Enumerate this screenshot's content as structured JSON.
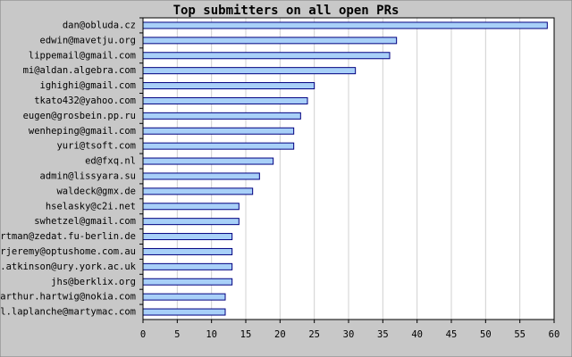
{
  "chart_data": {
    "type": "barh",
    "title": "Top submitters on all open PRs",
    "categories": [
      "dan@obluda.cz",
      "edwin@mavetju.org",
      "lippemail@gmail.com",
      "mi@aldan.algebra.com",
      "ighighi@gmail.com",
      "tkato432@yahoo.com",
      "eugen@grosbein.pp.ru",
      "wenheping@gmail.com",
      "yuri@tsoft.com",
      "ed@fxq.nl",
      "admin@lissyara.su",
      "waldeck@gmx.de",
      "hselasky@c2i.net",
      "swhetzel@gmail.com",
      "artman@zedat.fu-berlin.de",
      "erjeremy@optushome.com.au",
      "n.atkinson@ury.york.ac.uk",
      "jhs@berklix.org",
      "arthur.hartwig@nokia.com",
      "el.laplanche@martymac.com"
    ],
    "values": [
      59,
      37,
      36,
      31,
      25,
      24,
      23,
      22,
      22,
      19,
      17,
      16,
      14,
      14,
      13,
      13,
      13,
      13,
      12,
      12
    ],
    "color": "#a8d0f8",
    "xlim": [
      0,
      60
    ],
    "xticks": [
      0,
      5,
      10,
      15,
      20,
      25,
      30,
      35,
      40,
      45,
      50,
      55,
      60
    ],
    "grid": true
  }
}
